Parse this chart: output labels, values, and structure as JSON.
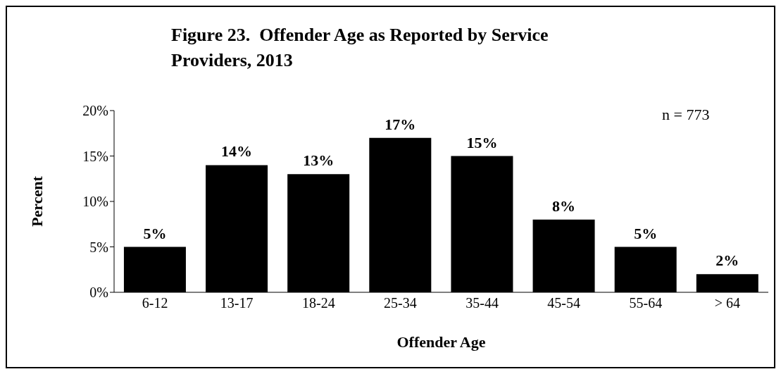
{
  "chart_data": {
    "type": "bar",
    "title": "Figure 23.  Offender Age as Reported by Service Providers, 2013",
    "xlabel": "Offender Age",
    "ylabel": "Percent",
    "annotations": [
      "n = 773"
    ],
    "categories": [
      "6-12",
      "13-17",
      "18-24",
      "25-34",
      "35-44",
      "45-54",
      "55-64",
      "> 64"
    ],
    "values": [
      5,
      14,
      13,
      17,
      15,
      8,
      5,
      2
    ],
    "value_labels": [
      "5%",
      "14%",
      "13%",
      "17%",
      "15%",
      "8%",
      "5%",
      "2%"
    ],
    "color": "#000000",
    "ylim": [
      0,
      20
    ],
    "yticks": [
      {
        "value": 0,
        "label": "0%"
      },
      {
        "value": 5,
        "label": "5%"
      },
      {
        "value": 10,
        "label": "10%"
      },
      {
        "value": 15,
        "label": "15%"
      },
      {
        "value": 20,
        "label": "20%"
      }
    ]
  }
}
